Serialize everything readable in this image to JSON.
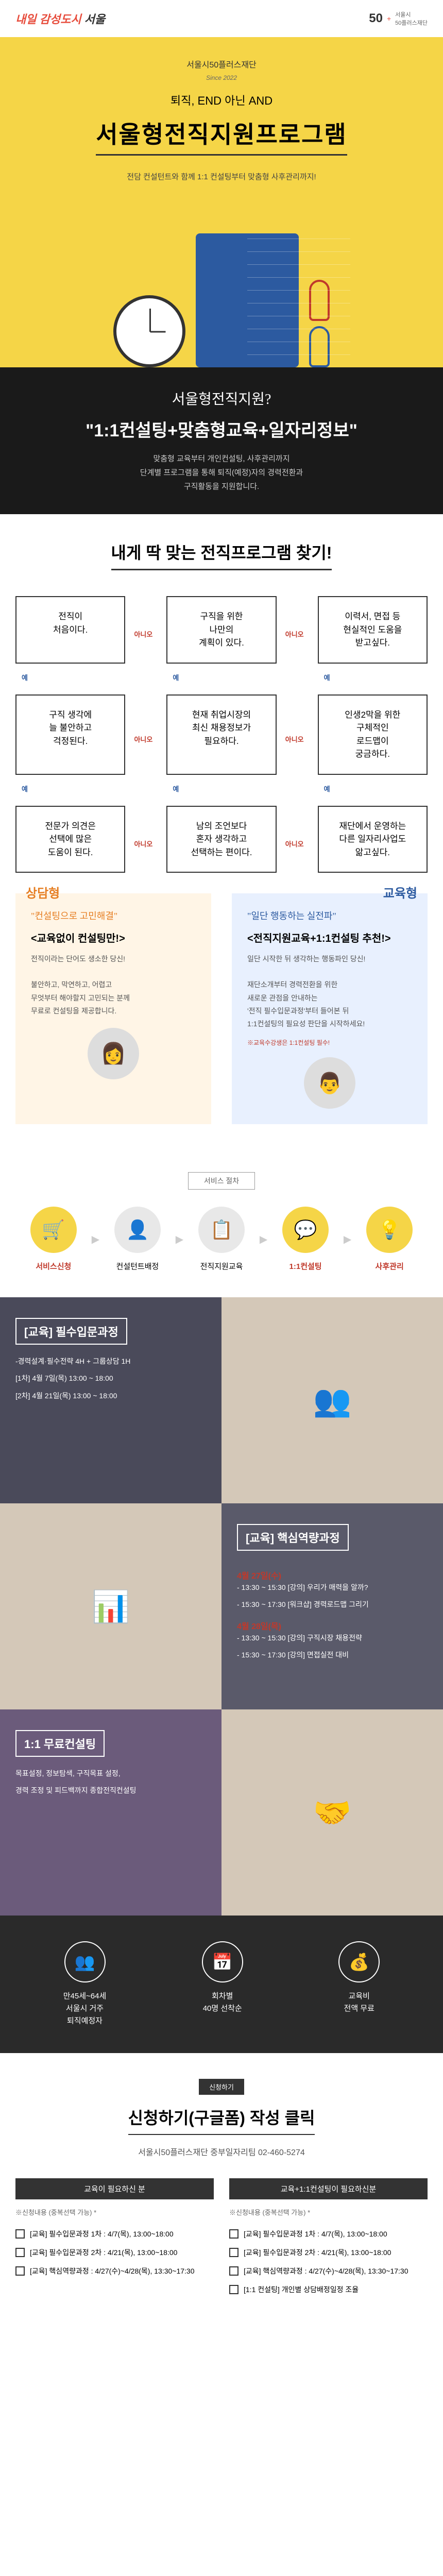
{
  "header": {
    "logo_left_prefix": "내일 감성도시",
    "logo_left_main": "서울",
    "logo_right_num": "50",
    "logo_right_plus": "+",
    "logo_right_text": "서울시\n50플러스재단"
  },
  "hero": {
    "sub": "서울시50플러스재단",
    "since": "Since 2022",
    "tag": "퇴직, END 아닌 AND",
    "title": "서울형전직지원프로그램",
    "desc": "전담 컨설턴트와 함께 1:1 컨설팅부터 맞춤형 사후관리까지!"
  },
  "banner": {
    "script": "서울형전직지원?",
    "main": "\"1:1컨설팅+맞춤형교육+일자리정보\"",
    "desc1": "맞춤형 교육부터 개인컨설팅, 사후관리까지",
    "desc2": "단계별 프로그램을 통해 퇴직(예정)자의 경력전환과",
    "desc3": "구직활동을 지원합니다."
  },
  "flow": {
    "title": "내게 딱 맞는 전직프로그램 찾기!",
    "boxes": [
      "전직이\n처음이다.",
      "구직을 위한\n나만의\n계획이 있다.",
      "이력서, 면접 등\n현실적인 도움을\n받고싶다.",
      "구직 생각에\n늘 불안하고\n걱정된다.",
      "현재 취업시장의\n최신 채용정보가\n필요하다.",
      "인생2막을 위한\n구체적인\n로드맵이\n궁금하다.",
      "전문가 의견은\n선택에 많은\n도움이 된다.",
      "남의 조언보다\n혼자 생각하고\n선택하는 편이다.",
      "재단에서 운영하는\n다른 일자리사업도\n앎고싶다."
    ],
    "yes": "예",
    "no": "아니오"
  },
  "results": {
    "left": {
      "tag": "상담형",
      "script": "\"컨설팅으로 고민해결\"",
      "title": "<교육없이 컨설팅만!>",
      "desc": "전직이라는 단어도 생소한 당신!\n\n불안하고, 막연하고, 어렵고\n무엇부터 해야할지 고민되는 분께\n무료로 컨설팅을 제공합니다.",
      "illust": "👩"
    },
    "right": {
      "tag": "교육형",
      "script": "\"일단 행동하는 실전파\"",
      "title": "<전직지원교육+1:1컨설팅 추천!>",
      "desc": "일단 시작한 뒤 생각하는 행동파인 당신!\n\n재단소개부터 경력전환을 위한\n새로운 관점을 안내하는\n'전직 필수입문과정'부터 들어본 뒤\n1:1컨설팅의 필요성 판단을 시작하세요!",
      "note": "※교육수강생은 1:1컨설팅 필수!",
      "illust": "👨"
    }
  },
  "steps": {
    "label": "서비스 절차",
    "items": [
      {
        "icon": "🛒",
        "label": "서비스신청",
        "color": "red"
      },
      {
        "icon": "👤",
        "label": "컨설턴트배정",
        "color": ""
      },
      {
        "icon": "📋",
        "label": "전직지원교육",
        "color": ""
      },
      {
        "icon": "💬",
        "label": "1:1컨설팅",
        "color": "red"
      },
      {
        "icon": "💡",
        "label": "사후관리",
        "color": "red"
      }
    ]
  },
  "courses": {
    "box1": {
      "title": "[교육] 필수입문과정",
      "items": [
        "-경력설계·필수전략 4H + 그룹상담 1H",
        "[1차] 4월 7일(목) 13:00 ~ 18:00",
        "[2차] 4월 21일(목) 13:00 ~ 18:00"
      ]
    },
    "box2": {
      "title": "[교육] 핵심역량과정",
      "date1": "4월 27일(수)",
      "items1": [
        "- 13:30 ~ 15:30 [강의] 우리가 매력을 알까?",
        "- 15:30 ~ 17:30 [워크샵] 경력로드맵 그리기"
      ],
      "date2": "4월 28일(목)",
      "items2": [
        "- 13:30 ~ 15:30 [강의] 구직시장 채용전략",
        "- 15:30 ~ 17:30 [강의] 면접실전 대비"
      ]
    },
    "box3": {
      "title": "1:1 무료컨설팅",
      "items": [
        "목표설정, 정보탐색, 구직목표 설정,",
        "경력 조정 및 피드백까지 종합전직컨설팅"
      ]
    }
  },
  "info": {
    "items": [
      {
        "icon": "👥",
        "text": "만45세~64세\n서울시 거주\n퇴직예정자"
      },
      {
        "icon": "📅",
        "text": "회차별\n40명 선착순"
      },
      {
        "icon": "💰",
        "text": "교육비\n전액 무료"
      }
    ]
  },
  "apply": {
    "label": "신청하기",
    "title": "신청하기(구글폼) 작성 클릭",
    "contact": "서울시50플러스재단 중부일자리팀   02-460-5274",
    "col1_title": "교육이 필요하신 분",
    "col2_title": "교육+1:1컨설팅이 필요하신분",
    "note": "※신청내용 (중복선택 가능) *",
    "options1": [
      "[교육] 필수입문과정 1차 : 4/7(목), 13:00~18:00",
      "[교육] 필수입문과정 2차 : 4/21(목), 13:00~18:00",
      "[교육] 핵심역량과정 : 4/27(수)~4/28(목), 13:30~17:30"
    ],
    "options2": [
      "[교육] 필수입문과정 1차 : 4/7(목), 13:00~18:00",
      "[교육] 필수입문과정 2차 : 4/21(목), 13:00~18:00",
      "[교육] 핵심역량과정 : 4/27(수)~4/28(목), 13:30~17:30",
      "[1:1 컨설팅] 개인별 상담배정일정 조율"
    ]
  }
}
